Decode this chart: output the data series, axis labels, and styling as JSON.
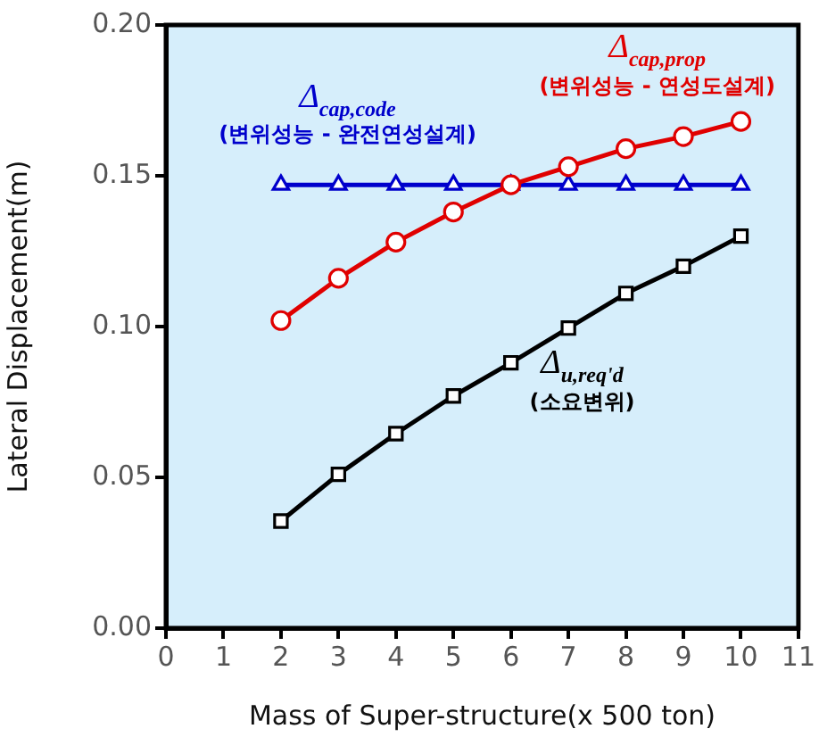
{
  "chart_data": {
    "type": "line",
    "xlabel": "Mass of Super-structure(x 500 ton)",
    "ylabel": "Lateral Displacement(m)",
    "x": [
      2,
      3,
      4,
      5,
      6,
      7,
      8,
      9,
      10
    ],
    "series": [
      {
        "name": "Δ$_{cap,code}$\n(변위성능 - 완전연성설계)",
        "color": "#0000cc",
        "marker": "triangle",
        "values": [
          0.147,
          0.147,
          0.147,
          0.147,
          0.147,
          0.147,
          0.147,
          0.147,
          0.147
        ]
      },
      {
        "name": "Δ$_{cap,prop}$\n(변위성능 - 연성도설계)",
        "color": "#e00000",
        "marker": "circle",
        "values": [
          0.102,
          0.116,
          0.128,
          0.138,
          0.147,
          0.153,
          0.159,
          0.163,
          0.168
        ]
      },
      {
        "name": "Δ$_{u,req'd}$\n(소요변위)",
        "color": "#000000",
        "marker": "square",
        "values": [
          0.0355,
          0.051,
          0.0645,
          0.077,
          0.088,
          0.0995,
          0.111,
          0.12,
          0.13
        ]
      }
    ],
    "xlim": [
      0,
      11
    ],
    "xticks": [
      0,
      1,
      2,
      3,
      4,
      5,
      6,
      7,
      8,
      9,
      10,
      11
    ],
    "ylim": [
      0,
      0.2
    ],
    "yticks": [
      {
        "value": 0,
        "label": "0.00"
      },
      {
        "value": 0.05,
        "label": "0.05"
      },
      {
        "value": 0.1,
        "label": "0.10"
      },
      {
        "value": 0.15,
        "label": "0.15"
      },
      {
        "value": 0.2,
        "label": "0.20"
      }
    ],
    "grid": false,
    "legend": false
  }
}
